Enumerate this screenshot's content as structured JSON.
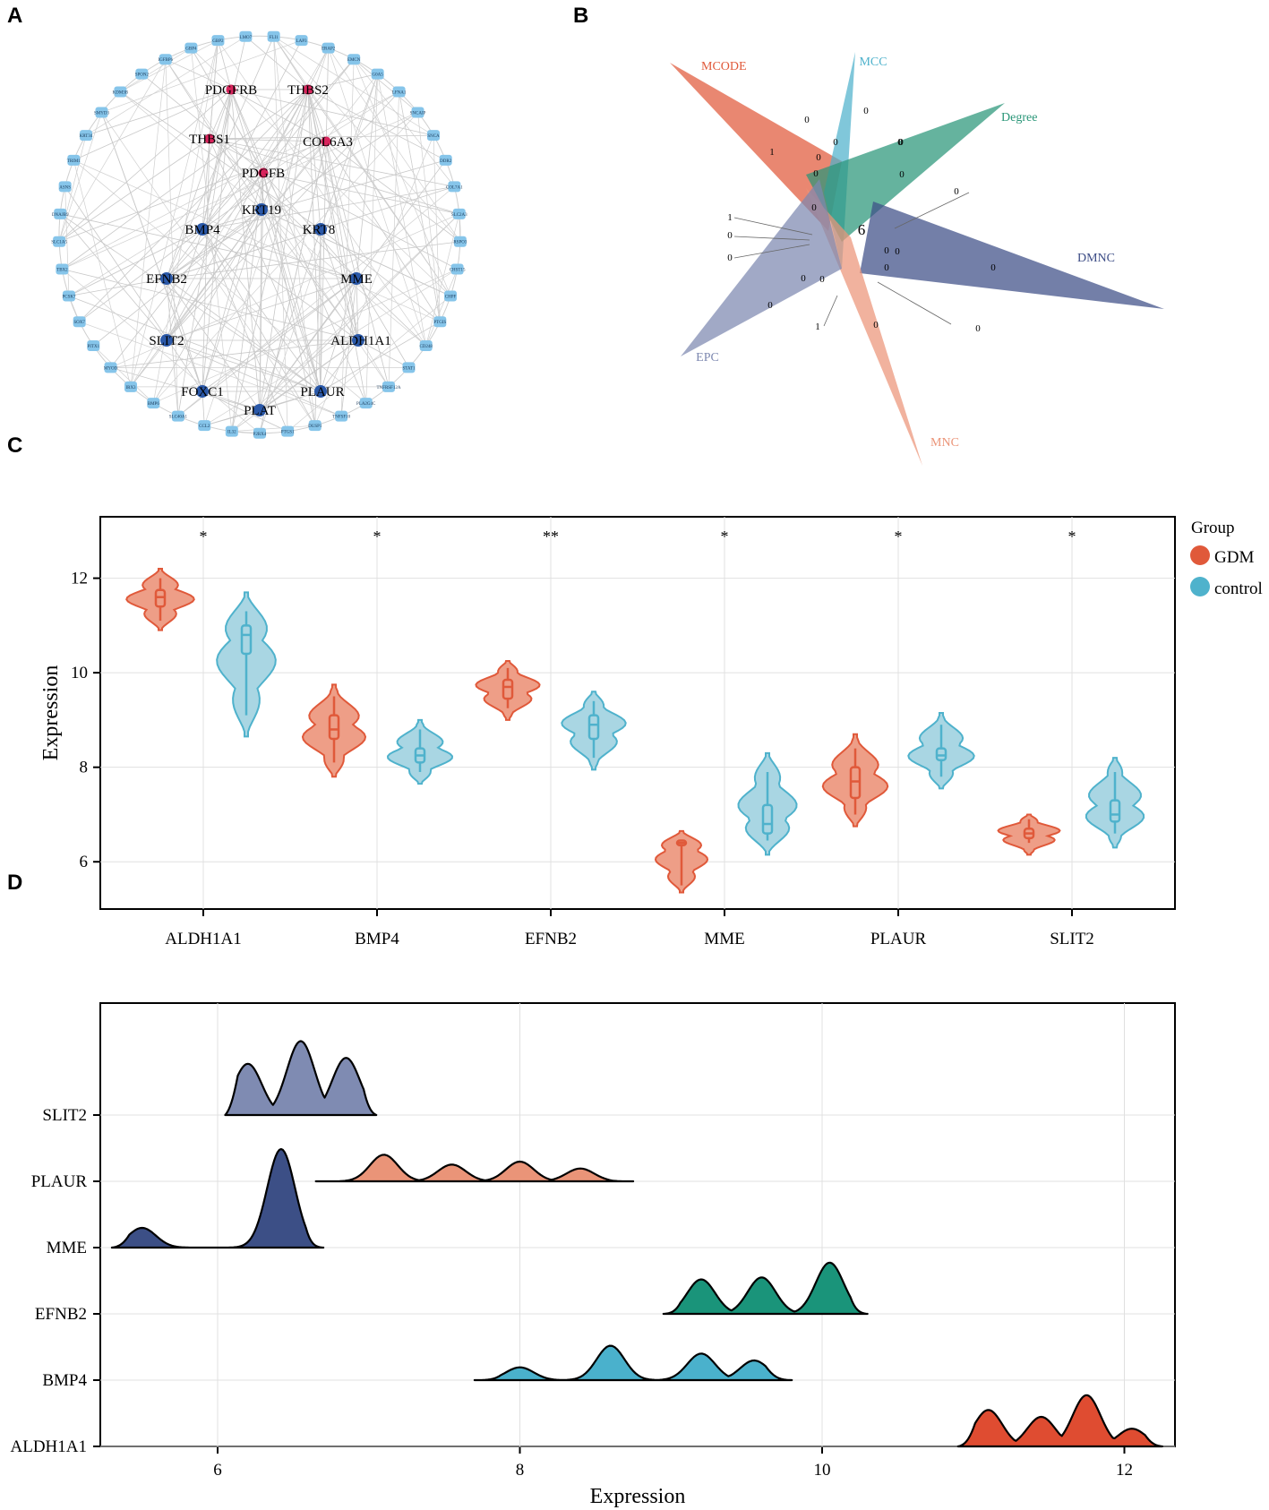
{
  "panels": {
    "a": "A",
    "b": "B",
    "c": "C",
    "d": "D"
  },
  "network": {
    "hubs_pink": [
      "PDGFRB",
      "THBS2",
      "THBS1",
      "COL6A3",
      "PDGFB"
    ],
    "hubs_blue": [
      "KRT19",
      "BMP4",
      "KRT8",
      "EFNB2",
      "MME",
      "SLIT2",
      "ALDH1A1",
      "FOXC1",
      "PLAUR",
      "PLAT"
    ],
    "outer_nodes": [
      "FLI1",
      "LAP3",
      "ERAP2",
      "EMCN",
      "G0A5",
      "LFNA1",
      "SNCAIP",
      "SNCA",
      "DDR2",
      "COL7A1",
      "SLC2A3",
      "RSPO3",
      "CHST15",
      "CHPF",
      "PTGIS",
      "CD248",
      "STAT1",
      "TNFRSF12A",
      "PLA2G4C",
      "TNFSF10",
      "DUSP1",
      "PTGS1",
      "P2RX4",
      "IL32",
      "CCL2",
      "SLC40A1",
      "BMP6",
      "IRX3",
      "MYOD",
      "PITX1",
      "SOX7",
      "PCSK7",
      "TBX2",
      "SLC1A5",
      "DNAJB9",
      "ASNS",
      "TRIM1",
      "KRT34",
      "SMYD3",
      "KDM3B",
      "SPON2",
      "IGFBP6",
      "GBP4",
      "GBP2",
      "LMO7"
    ]
  },
  "venn": {
    "sets": [
      {
        "name": "MCODE",
        "color": "#e0593a"
      },
      {
        "name": "MCC",
        "color": "#4fb2cc"
      },
      {
        "name": "Degree",
        "color": "#2a9678"
      },
      {
        "name": "DMNC",
        "color": "#3d4d86"
      },
      {
        "name": "MNC",
        "color": "#eb9478"
      },
      {
        "name": "EPC",
        "color": "#7d88b0"
      }
    ],
    "center": "6",
    "counts": [
      "1",
      "0",
      "0",
      "0",
      "0",
      "0",
      "0",
      "0",
      "0",
      "0",
      "0",
      "0",
      "0",
      "0",
      "0",
      "0",
      "1",
      "0",
      "0",
      "0",
      "0",
      "1",
      "0",
      "0"
    ]
  },
  "chart_data": [
    {
      "type": "violin",
      "title": "",
      "ylabel": "Expression",
      "xlabel": "",
      "ylim": [
        5,
        13.3
      ],
      "yticks": [
        "6",
        "8",
        "10",
        "12"
      ],
      "categories": [
        "ALDH1A1",
        "BMP4",
        "EFNB2",
        "MME",
        "PLAUR",
        "SLIT2"
      ],
      "significance": [
        "*",
        "*",
        "**",
        "*",
        "*",
        "*"
      ],
      "legend": {
        "title": "Group",
        "entries": [
          "GDM",
          "control"
        ],
        "colors": [
          "#e0593a",
          "#4fb2cc"
        ]
      },
      "series": [
        {
          "name": "GDM",
          "min": [
            11.1,
            8.1,
            9.25,
            5.5,
            7.0,
            6.4
          ],
          "q1": [
            11.4,
            8.6,
            9.45,
            6.35,
            7.35,
            6.5
          ],
          "median": [
            11.6,
            8.8,
            9.7,
            6.4,
            7.7,
            6.6
          ],
          "q3": [
            11.75,
            9.1,
            9.85,
            6.45,
            8.0,
            6.7
          ],
          "max": [
            12.0,
            9.5,
            10.1,
            6.45,
            8.4,
            6.9
          ],
          "vmin": [
            10.9,
            7.8,
            9.0,
            5.35,
            6.75,
            6.15
          ],
          "vmax": [
            12.2,
            9.75,
            10.25,
            6.65,
            8.7,
            7.0
          ]
        },
        {
          "name": "control",
          "min": [
            9.1,
            7.9,
            8.2,
            6.45,
            7.8,
            6.6
          ],
          "q1": [
            10.4,
            8.1,
            8.6,
            6.6,
            8.15,
            6.85
          ],
          "median": [
            10.8,
            8.25,
            8.9,
            6.8,
            8.25,
            7.0
          ],
          "q3": [
            11.0,
            8.4,
            9.1,
            7.2,
            8.4,
            7.3
          ],
          "max": [
            11.3,
            8.8,
            9.4,
            7.9,
            8.9,
            7.9
          ],
          "vmin": [
            8.65,
            7.65,
            7.95,
            6.15,
            7.55,
            6.3
          ],
          "vmax": [
            11.7,
            9.0,
            9.6,
            8.3,
            9.15,
            8.2
          ]
        }
      ]
    },
    {
      "type": "ridgeline",
      "title": "",
      "xlabel": "Expression",
      "ylabel": "",
      "xlim": [
        5.2,
        12.3
      ],
      "xticks": [
        "6",
        "8",
        "10",
        "12"
      ],
      "categories": [
        "SLIT2",
        "PLAUR",
        "MME",
        "EFNB2",
        "BMP4",
        "ALDH1A1"
      ],
      "colors": [
        "#7f8bb2",
        "#ea9478",
        "#3c4f86",
        "#1a947a",
        "#4ab1cc",
        "#df4c31"
      ],
      "series": [
        {
          "name": "SLIT2",
          "range": [
            6.05,
            7.05
          ],
          "peaks": [
            [
              6.2,
              0.52
            ],
            [
              6.55,
              0.75
            ],
            [
              6.85,
              0.58
            ]
          ]
        },
        {
          "name": "PLAUR",
          "range": [
            6.65,
            8.75
          ],
          "peaks": [
            [
              7.1,
              0.27
            ],
            [
              7.55,
              0.17
            ],
            [
              8.0,
              0.2
            ],
            [
              8.4,
              0.13
            ]
          ]
        },
        {
          "name": "MME",
          "range": [
            5.3,
            6.7
          ],
          "peaks": [
            [
              5.5,
              0.2
            ],
            [
              6.42,
              1.0
            ]
          ]
        },
        {
          "name": "EFNB2",
          "range": [
            8.95,
            10.3
          ],
          "peaks": [
            [
              9.2,
              0.35
            ],
            [
              9.6,
              0.37
            ],
            [
              10.05,
              0.52
            ]
          ]
        },
        {
          "name": "BMP4",
          "range": [
            7.7,
            9.8
          ],
          "peaks": [
            [
              8.0,
              0.13
            ],
            [
              8.6,
              0.35
            ],
            [
              9.2,
              0.27
            ],
            [
              9.55,
              0.2
            ]
          ]
        },
        {
          "name": "ALDH1A1",
          "range": [
            10.9,
            12.25
          ],
          "peaks": [
            [
              11.1,
              0.37
            ],
            [
              11.45,
              0.3
            ],
            [
              11.75,
              0.52
            ],
            [
              12.05,
              0.18
            ]
          ]
        }
      ]
    }
  ]
}
